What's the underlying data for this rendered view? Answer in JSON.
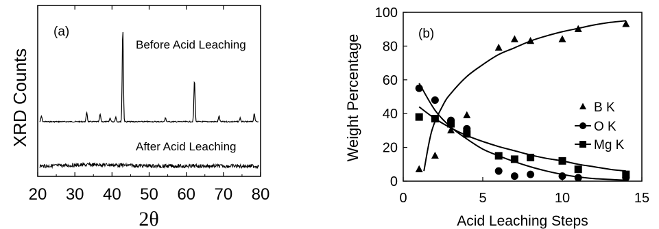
{
  "chart_data": [
    {
      "type": "line",
      "panel_label": "(a)",
      "xlabel": "2θ",
      "ylabel": "XRD Counts",
      "xlim": [
        20,
        80
      ],
      "x_ticks": [
        "20",
        "30",
        "40",
        "50",
        "60",
        "70",
        "80"
      ],
      "y_ticks": [],
      "series": [
        {
          "name": "Before Acid Leaching",
          "baseline": 0.1,
          "peaks": [
            {
              "x": 21.0,
              "y": 0.06
            },
            {
              "x": 33.2,
              "y": 0.1
            },
            {
              "x": 36.8,
              "y": 0.08
            },
            {
              "x": 39.5,
              "y": 0.04
            },
            {
              "x": 41.0,
              "y": 0.05
            },
            {
              "x": 42.9,
              "y": 1.0
            },
            {
              "x": 54.4,
              "y": 0.04
            },
            {
              "x": 62.2,
              "y": 0.45
            },
            {
              "x": 68.8,
              "y": 0.06
            },
            {
              "x": 74.5,
              "y": 0.04
            },
            {
              "x": 78.3,
              "y": 0.09
            }
          ]
        },
        {
          "name": "After Acid Leaching",
          "baseline": 0.0,
          "peaks": []
        }
      ]
    },
    {
      "type": "scatter",
      "panel_label": "(b)",
      "xlabel": "Acid Leaching Steps",
      "ylabel": "Weight Percentage",
      "xlim": [
        0,
        15
      ],
      "ylim": [
        0,
        100
      ],
      "x_ticks": [
        "0",
        "5",
        "10",
        "15"
      ],
      "y_ticks": [
        "0",
        "20",
        "40",
        "60",
        "80",
        "100"
      ],
      "legend_position": "right-middle",
      "series": [
        {
          "name": "B K",
          "marker": "triangle",
          "points": [
            [
              1,
              7
            ],
            [
              2,
              15
            ],
            [
              3,
              30
            ],
            [
              4,
              39
            ],
            [
              6,
              79
            ],
            [
              7,
              84
            ],
            [
              8,
              83
            ],
            [
              10,
              84
            ],
            [
              11,
              90
            ],
            [
              14,
              93
            ]
          ],
          "fit": [
            [
              1.3,
              6
            ],
            [
              1.8,
              30
            ],
            [
              2.5,
              45
            ],
            [
              3,
              52
            ],
            [
              4,
              62
            ],
            [
              5,
              69
            ],
            [
              6,
              75
            ],
            [
              7,
              79
            ],
            [
              8,
              83
            ],
            [
              9,
              86
            ],
            [
              10,
              88.5
            ],
            [
              11,
              90.5
            ],
            [
              12,
              92.5
            ],
            [
              13,
              94
            ],
            [
              14,
              95
            ]
          ]
        },
        {
          "name": "O K",
          "marker": "circle",
          "points": [
            [
              1,
              55
            ],
            [
              2,
              48
            ],
            [
              3,
              36
            ],
            [
              4,
              31
            ],
            [
              6,
              6
            ],
            [
              7,
              3
            ],
            [
              8,
              4
            ],
            [
              10,
              3
            ],
            [
              11,
              2
            ],
            [
              14,
              2
            ]
          ],
          "fit": [
            [
              1,
              58
            ],
            [
              2,
              42
            ],
            [
              3,
              32
            ],
            [
              4,
              25
            ],
            [
              5,
              19
            ],
            [
              6,
              15
            ],
            [
              7,
              11.5
            ],
            [
              8,
              8.5
            ],
            [
              9,
              6
            ],
            [
              10,
              4
            ],
            [
              11,
              2.5
            ],
            [
              12,
              1.5
            ],
            [
              13,
              1
            ],
            [
              14,
              0.5
            ]
          ]
        },
        {
          "name": "Mg K",
          "marker": "square",
          "points": [
            [
              1,
              38
            ],
            [
              2,
              37
            ],
            [
              3,
              34
            ],
            [
              4,
              28
            ],
            [
              6,
              15
            ],
            [
              7,
              13
            ],
            [
              8,
              14
            ],
            [
              10,
              12
            ],
            [
              11,
              7
            ],
            [
              14,
              4
            ]
          ],
          "fit": [
            [
              1,
              44
            ],
            [
              2,
              37
            ],
            [
              3,
              31.5
            ],
            [
              4,
              27
            ],
            [
              5,
              23.5
            ],
            [
              6,
              20.5
            ],
            [
              7,
              18
            ],
            [
              8,
              15.5
            ],
            [
              9,
              13.5
            ],
            [
              10,
              12
            ],
            [
              11,
              10
            ],
            [
              12,
              8.5
            ],
            [
              13,
              7
            ],
            [
              14,
              6
            ]
          ]
        }
      ]
    }
  ]
}
